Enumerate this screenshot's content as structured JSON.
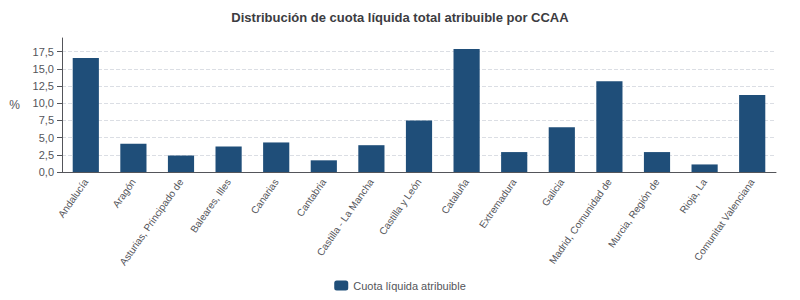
{
  "chart_data": {
    "type": "bar",
    "title": "Distribución de cuota líquida total atribuible por CCAA",
    "categories": [
      "Andalucía",
      "Aragón",
      "Asturias, Principado de",
      "Baleares, Illes",
      "Canarias",
      "Cantabria",
      "Castilla - La Mancha",
      "Castilla y León",
      "Cataluña",
      "Extremadura",
      "Galicia",
      "Madrid, Comunidad de",
      "Murcia, Región de",
      "Rioja, La",
      "Comunitat Valenciana"
    ],
    "series": [
      {
        "name": "Cuota líquida atribuible",
        "color": "#1f4e79",
        "values": [
          16.6,
          4.1,
          2.4,
          3.7,
          4.3,
          1.7,
          3.9,
          7.5,
          17.9,
          2.9,
          6.5,
          13.2,
          2.9,
          1.1,
          11.2
        ]
      }
    ],
    "ylabel": "%",
    "ylim": [
      0,
      19.5
    ],
    "yticks": [
      {
        "value": 0.0,
        "label": "0,0"
      },
      {
        "value": 2.5,
        "label": "2,5"
      },
      {
        "value": 5.0,
        "label": "5,0"
      },
      {
        "value": 7.5,
        "label": "7,5"
      },
      {
        "value": 10.0,
        "label": "10,0"
      },
      {
        "value": 12.5,
        "label": "12,5"
      },
      {
        "value": 15.0,
        "label": "15,0"
      },
      {
        "value": 17.5,
        "label": "17,5"
      }
    ],
    "grid": true,
    "legend": "bottom"
  }
}
